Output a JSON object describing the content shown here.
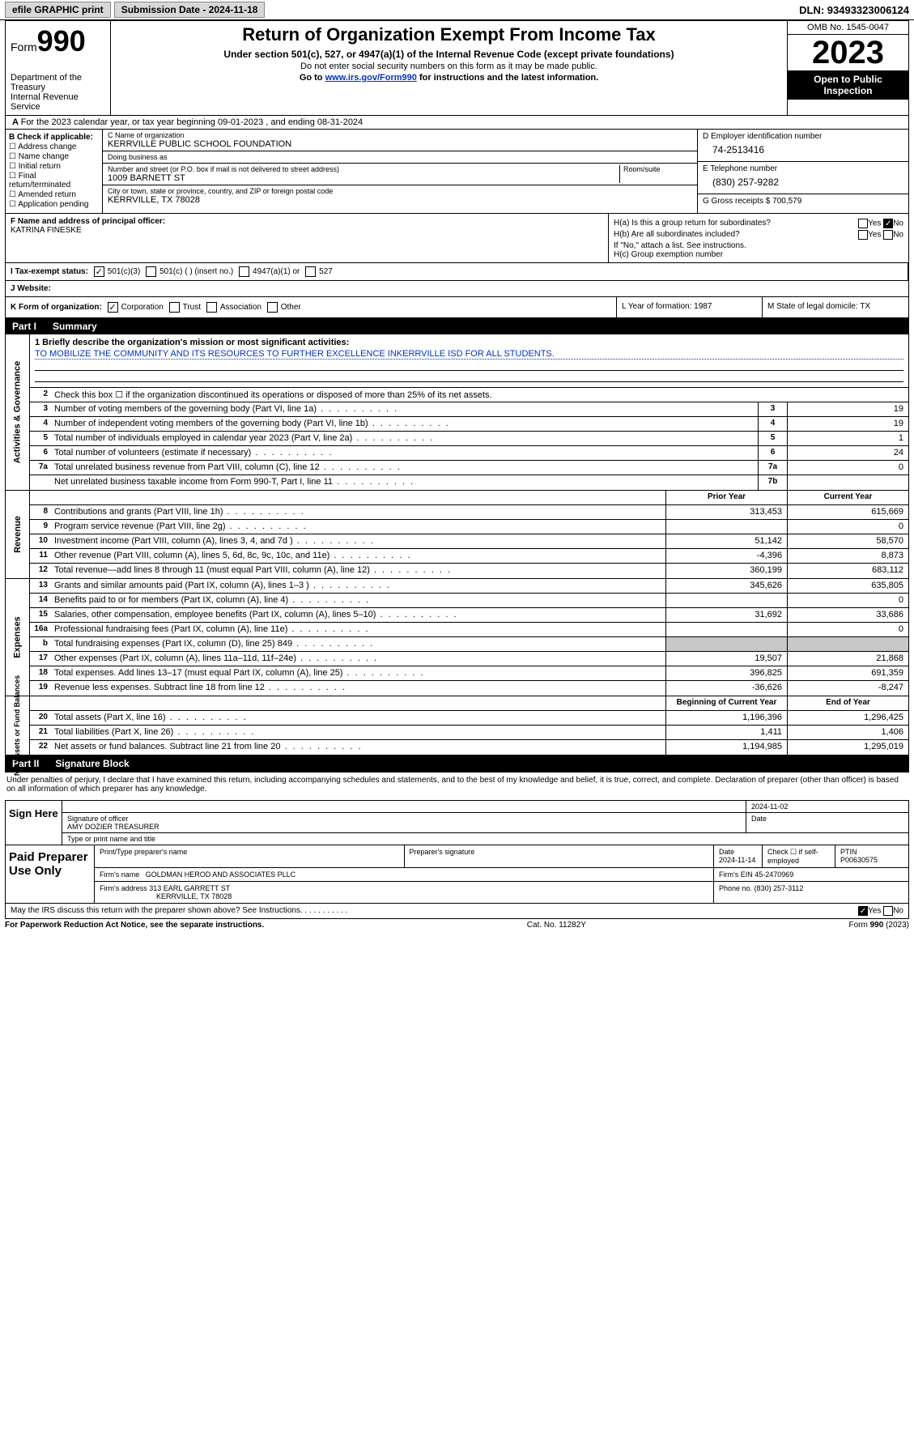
{
  "topbar": {
    "efile": "efile GRAPHIC print",
    "submission": "Submission Date - 2024-11-18",
    "dln": "DLN: 93493323006124"
  },
  "head": {
    "form_prefix": "Form",
    "form_num": "990",
    "dept": "Department of the Treasury",
    "irs": "Internal Revenue Service",
    "title": "Return of Organization Exempt From Income Tax",
    "sub1": "Under section 501(c), 527, or 4947(a)(1) of the Internal Revenue Code (except private foundations)",
    "sub2": "Do not enter social security numbers on this form as it may be made public.",
    "sub3_pre": "Go to ",
    "sub3_link": "www.irs.gov/Form990",
    "sub3_post": " for instructions and the latest information.",
    "omb": "OMB No. 1545-0047",
    "year": "2023",
    "inspect": "Open to Public Inspection"
  },
  "rowA": "For the 2023 calendar year, or tax year beginning 09-01-2023   , and ending 08-31-2024",
  "boxB": {
    "hd": "B Check if applicable:",
    "opts": [
      "Address change",
      "Name change",
      "Initial return",
      "Final return/terminated",
      "Amended return",
      "Application pending"
    ]
  },
  "boxC": {
    "name_lbl": "C Name of organization",
    "name": "KERRVILLE PUBLIC SCHOOL FOUNDATION",
    "dba_lbl": "Doing business as",
    "dba": "",
    "addr_lbl": "Number and street (or P.O. box if mail is not delivered to street address)",
    "addr": "1009 BARNETT ST",
    "room_lbl": "Room/suite",
    "city_lbl": "City or town, state or province, country, and ZIP or foreign postal code",
    "city": "KERRVILLE, TX  78028"
  },
  "boxD": {
    "lbl": "D Employer identification number",
    "val": "74-2513416"
  },
  "boxE": {
    "lbl": "E Telephone number",
    "val": "(830) 257-9282"
  },
  "boxG": {
    "lbl": "G Gross receipts $",
    "val": "700,579"
  },
  "boxF": {
    "lbl": "F  Name and address of principal officer:",
    "val": "KATRINA FINESKE"
  },
  "boxH": {
    "a": "H(a)  Is this a group return for subordinates?",
    "b": "H(b)  Are all subordinates included?",
    "b2": "If \"No,\" attach a list. See instructions.",
    "c": "H(c)  Group exemption number"
  },
  "boxI": {
    "lbl": "I   Tax-exempt status:",
    "o1": "501(c)(3)",
    "o2": "501(c) (  ) (insert no.)",
    "o3": "4947(a)(1) or",
    "o4": "527"
  },
  "boxJ": "J   Website:",
  "boxK": {
    "lbl": "K Form of organization:",
    "o1": "Corporation",
    "o2": "Trust",
    "o3": "Association",
    "o4": "Other"
  },
  "boxL": "L Year of formation: 1987",
  "boxM": "M State of legal domicile: TX",
  "part1": {
    "pn": "Part I",
    "t": "Summary"
  },
  "mission": {
    "q": "1   Briefly describe the organization's mission or most significant activities:",
    "a": "TO MOBILIZE THE COMMUNITY AND ITS RESOURCES TO FURTHER EXCELLENCE INKERRVILLE ISD FOR ALL STUDENTS."
  },
  "line2": "Check this box ☐  if the organization discontinued its operations or disposed of more than 25% of its net assets.",
  "gov": {
    "hd": "Activities & Governance",
    "rows": [
      {
        "n": "3",
        "t": "Number of voting members of the governing body (Part VI, line 1a)",
        "bx": "3",
        "v": "19"
      },
      {
        "n": "4",
        "t": "Number of independent voting members of the governing body (Part VI, line 1b)",
        "bx": "4",
        "v": "19"
      },
      {
        "n": "5",
        "t": "Total number of individuals employed in calendar year 2023 (Part V, line 2a)",
        "bx": "5",
        "v": "1"
      },
      {
        "n": "6",
        "t": "Total number of volunteers (estimate if necessary)",
        "bx": "6",
        "v": "24"
      },
      {
        "n": "7a",
        "t": "Total unrelated business revenue from Part VIII, column (C), line 12",
        "bx": "7a",
        "v": "0"
      },
      {
        "n": "",
        "t": "Net unrelated business taxable income from Form 990-T, Part I, line 11",
        "bx": "7b",
        "v": ""
      }
    ]
  },
  "rev": {
    "hd": "Revenue",
    "hprior": "Prior Year",
    "hcurr": "Current Year",
    "rows": [
      {
        "n": "8",
        "t": "Contributions and grants (Part VIII, line 1h)",
        "p": "313,453",
        "c": "615,669"
      },
      {
        "n": "9",
        "t": "Program service revenue (Part VIII, line 2g)",
        "p": "",
        "c": "0"
      },
      {
        "n": "10",
        "t": "Investment income (Part VIII, column (A), lines 3, 4, and 7d )",
        "p": "51,142",
        "c": "58,570"
      },
      {
        "n": "11",
        "t": "Other revenue (Part VIII, column (A), lines 5, 6d, 8c, 9c, 10c, and 11e)",
        "p": "-4,396",
        "c": "8,873"
      },
      {
        "n": "12",
        "t": "Total revenue—add lines 8 through 11 (must equal Part VIII, column (A), line 12)",
        "p": "360,199",
        "c": "683,112"
      }
    ]
  },
  "exp": {
    "hd": "Expenses",
    "rows": [
      {
        "n": "13",
        "t": "Grants and similar amounts paid (Part IX, column (A), lines 1–3 )",
        "p": "345,626",
        "c": "635,805"
      },
      {
        "n": "14",
        "t": "Benefits paid to or for members (Part IX, column (A), line 4)",
        "p": "",
        "c": "0"
      },
      {
        "n": "15",
        "t": "Salaries, other compensation, employee benefits (Part IX, column (A), lines 5–10)",
        "p": "31,692",
        "c": "33,686"
      },
      {
        "n": "16a",
        "t": "Professional fundraising fees (Part IX, column (A), line 11e)",
        "p": "",
        "c": "0"
      },
      {
        "n": "b",
        "t": "Total fundraising expenses (Part IX, column (D), line 25) 849",
        "p": "GREY",
        "c": "GREY"
      },
      {
        "n": "17",
        "t": "Other expenses (Part IX, column (A), lines 11a–11d, 11f–24e)",
        "p": "19,507",
        "c": "21,868"
      },
      {
        "n": "18",
        "t": "Total expenses. Add lines 13–17 (must equal Part IX, column (A), line 25)",
        "p": "396,825",
        "c": "691,359"
      },
      {
        "n": "19",
        "t": "Revenue less expenses. Subtract line 18 from line 12",
        "p": "-36,626",
        "c": "-8,247"
      }
    ]
  },
  "net": {
    "hd": "Net Assets or Fund Balances",
    "hbeg": "Beginning of Current Year",
    "hend": "End of Year",
    "rows": [
      {
        "n": "20",
        "t": "Total assets (Part X, line 16)",
        "p": "1,196,396",
        "c": "1,296,425"
      },
      {
        "n": "21",
        "t": "Total liabilities (Part X, line 26)",
        "p": "1,411",
        "c": "1,406"
      },
      {
        "n": "22",
        "t": "Net assets or fund balances. Subtract line 21 from line 20",
        "p": "1,194,985",
        "c": "1,295,019"
      }
    ]
  },
  "part2": {
    "pn": "Part II",
    "t": "Signature Block"
  },
  "sig_txt": "Under penalties of perjury, I declare that I have examined this return, including accompanying schedules and statements, and to the best of my knowledge and belief, it is true, correct, and complete. Declaration of preparer (other than officer) is based on all information of which preparer has any knowledge.",
  "sign": {
    "l": "Sign Here",
    "date": "2024-11-02",
    "sig_lbl": "Signature of officer",
    "name": "AMY DOZIER  TREASURER",
    "name_lbl": "Type or print name and title",
    "date_lbl": "Date"
  },
  "prep": {
    "l": "Paid Preparer Use Only",
    "h1": "Print/Type preparer's name",
    "h2": "Preparer's signature",
    "h3": "Date",
    "h3v": "2024-11-14",
    "h4": "Check ☐ if self-employed",
    "h5": "PTIN",
    "h5v": "P00630575",
    "firm_lbl": "Firm's name",
    "firm": "GOLDMAN HEROD AND ASSOCIATES PLLC",
    "ein_lbl": "Firm's EIN",
    "ein": "45-2470969",
    "addr_lbl": "Firm's address",
    "addr1": "313 EARL GARRETT ST",
    "addr2": "KERRVILLE, TX  78028",
    "ph_lbl": "Phone no.",
    "ph": "(830) 257-3112"
  },
  "may": "May the IRS discuss this return with the preparer shown above? See Instructions.   .    .    .    .    .    .    .    .    .    .",
  "foot": {
    "l": "For Paperwork Reduction Act Notice, see the separate instructions.",
    "m": "Cat. No. 11282Y",
    "r": "Form 990 (2023)"
  }
}
